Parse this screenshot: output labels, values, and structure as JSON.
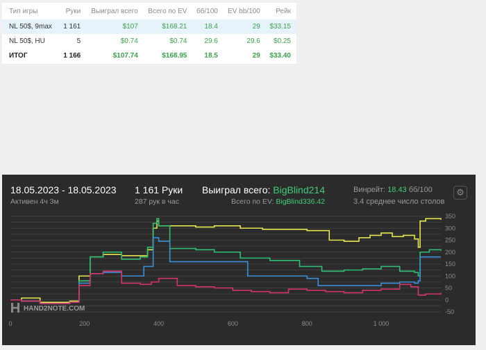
{
  "table": {
    "headers": [
      "Тип игры",
      "Руки",
      "Выиграл всего",
      "Всего по EV",
      "бб/100",
      "EV bb/100",
      "Рейк"
    ],
    "rows": [
      [
        "NL 50$, 9max",
        "1 161",
        "$107",
        "$168.21",
        "18.4",
        "29",
        "$33.15"
      ],
      [
        "NL 50$, HU",
        "5",
        "$0.74",
        "$0.74",
        "29.6",
        "29.6",
        "$0.25"
      ],
      [
        "ИТОГ",
        "1 166",
        "$107.74",
        "$168.95",
        "18.5",
        "29",
        "$33.40"
      ]
    ]
  },
  "session": {
    "date_range": "18.05.2023 - 18.05.2023",
    "active": "Активен 4ч 3м",
    "hands": "1 161 Руки",
    "hands_per_hour": "287 рук в час",
    "won_label": "Выиграл всего:",
    "won_value": "BigBlind214",
    "ev_label": "Всего по EV:",
    "ev_value": "BigBlind336.42",
    "winrate_label": "Винрейт:",
    "winrate_value": "18.43",
    "winrate_unit": "бб/100",
    "tables": "3.4 среднее число столов",
    "settings_icon": "gear-icon"
  },
  "watermark": "HAND2NOTE.COM",
  "chart_data": {
    "type": "line",
    "xlim": [
      0,
      1161
    ],
    "ylim": [
      -50,
      350
    ],
    "x_ticks": [
      "0",
      "200",
      "400",
      "600",
      "800",
      "1 000"
    ],
    "x_tick_values": [
      0,
      200,
      400,
      600,
      800,
      1000
    ],
    "y_ticks": [
      "350",
      "300",
      "250",
      "200",
      "150",
      "100",
      "50",
      "0",
      "-50"
    ],
    "y_tick_values": [
      350,
      300,
      250,
      200,
      150,
      100,
      50,
      0,
      -50
    ],
    "grid": true,
    "series": [
      {
        "color": "#e8e64c",
        "x": [
          0,
          30,
          80,
          160,
          185,
          215,
          250,
          300,
          370,
          385,
          395,
          400,
          430,
          500,
          550,
          620,
          680,
          740,
          800,
          860,
          900,
          940,
          970,
          1000,
          1030,
          1060,
          1090,
          1100,
          1105,
          1120,
          1140,
          1161
        ],
        "y": [
          0,
          8,
          -10,
          -5,
          100,
          180,
          190,
          185,
          210,
          300,
          330,
          310,
          310,
          305,
          310,
          300,
          295,
          295,
          290,
          250,
          245,
          260,
          270,
          280,
          265,
          270,
          255,
          220,
          330,
          340,
          340,
          335
        ]
      },
      {
        "color": "#2fbf71",
        "x": [
          0,
          30,
          80,
          160,
          185,
          215,
          250,
          300,
          350,
          370,
          385,
          395,
          400,
          430,
          500,
          550,
          620,
          700,
          780,
          840,
          900,
          950,
          1000,
          1050,
          1090,
          1100,
          1105,
          1130,
          1161
        ],
        "y": [
          0,
          -5,
          -15,
          -10,
          80,
          180,
          200,
          170,
          180,
          220,
          320,
          340,
          310,
          215,
          210,
          200,
          175,
          165,
          140,
          120,
          125,
          130,
          140,
          120,
          115,
          100,
          200,
          210,
          205
        ]
      },
      {
        "color": "#3b8fd9",
        "x": [
          0,
          30,
          80,
          160,
          185,
          215,
          250,
          300,
          360,
          385,
          400,
          430,
          500,
          580,
          640,
          700,
          770,
          800,
          830,
          900,
          960,
          1000,
          1050,
          1090,
          1100,
          1105,
          1161
        ],
        "y": [
          0,
          -5,
          -15,
          -10,
          70,
          110,
          115,
          100,
          140,
          260,
          245,
          160,
          160,
          160,
          100,
          100,
          100,
          90,
          60,
          60,
          60,
          70,
          75,
          70,
          80,
          180,
          180
        ]
      },
      {
        "color": "#d6336c",
        "x": [
          0,
          30,
          80,
          160,
          185,
          215,
          250,
          300,
          350,
          380,
          400,
          450,
          500,
          550,
          600,
          650,
          700,
          750,
          800,
          850,
          900,
          950,
          1000,
          1050,
          1080,
          1100,
          1120,
          1161
        ],
        "y": [
          0,
          -5,
          -15,
          -10,
          60,
          110,
          120,
          70,
          65,
          75,
          90,
          60,
          55,
          50,
          40,
          35,
          30,
          45,
          40,
          35,
          30,
          40,
          45,
          65,
          55,
          20,
          25,
          30
        ]
      }
    ]
  }
}
